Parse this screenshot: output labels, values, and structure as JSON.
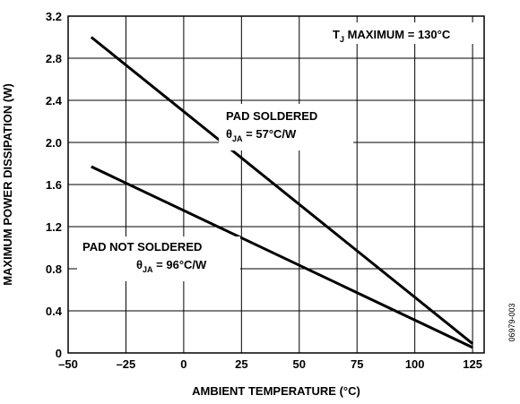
{
  "chart_data": {
    "type": "line",
    "xlabel": "AMBIENT TEMPERATURE (°C)",
    "ylabel": "MAXIMUM POWER DISSIPATION (W)",
    "xlim": [
      -50,
      130
    ],
    "ylim": [
      0,
      3.2
    ],
    "x_ticks": [
      -50,
      -25,
      0,
      25,
      50,
      75,
      100,
      125
    ],
    "x_tick_labels": [
      "–50",
      "–25",
      "0",
      "25",
      "50",
      "75",
      "100",
      "125"
    ],
    "y_ticks": [
      0,
      0.4,
      0.8,
      1.2,
      1.6,
      2.0,
      2.4,
      2.8,
      3.2
    ],
    "y_tick_labels": [
      "0",
      "0.4",
      "0.8",
      "1.2",
      "1.6",
      "2.0",
      "2.4",
      "2.8",
      "3.2"
    ],
    "grid": true,
    "series": [
      {
        "name": "PAD SOLDERED",
        "x": [
          -40,
          125
        ],
        "y": [
          3.0,
          0.088
        ]
      },
      {
        "name": "PAD NOT SOLDERED",
        "x": [
          -40,
          125
        ],
        "y": [
          1.77,
          0.052
        ]
      }
    ],
    "annotations": {
      "tj": {
        "main": "T",
        "sub": "J",
        "rest": " MAXIMUM = 130°C"
      },
      "soldered": {
        "line1": "PAD SOLDERED",
        "theta": "θ",
        "sub": "JA",
        "rest": " = 57°C/W"
      },
      "not_soldered": {
        "line1": "PAD NOT SOLDERED",
        "theta": "θ",
        "sub": "JA",
        "rest": " = 96°C/W"
      }
    },
    "figure_code": "06979-003",
    "colors": {
      "line": "#000000",
      "grid": "#000000",
      "background": "#ffffff"
    }
  }
}
